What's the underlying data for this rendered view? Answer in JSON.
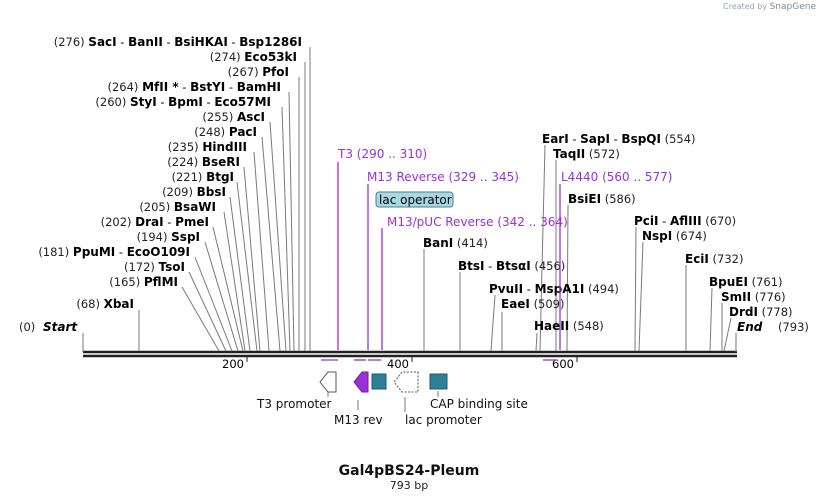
{
  "header": {
    "created_by": "Created by",
    "brand": "SnapGene"
  },
  "plasmid": {
    "name": "Gal4pBS24-Pleum",
    "length_label": "793 bp",
    "length_bp": 793
  },
  "ruler": {
    "ticks": [
      "200",
      "400",
      "600"
    ]
  },
  "start_label": {
    "pos": "(0)",
    "name": "Start"
  },
  "end_label": {
    "pos": "(793)",
    "name": "End"
  },
  "enzymes_left": [
    {
      "pos": "(276)",
      "names": [
        "SacI",
        "BanII",
        "BsiHKAI",
        "Bsp1286I"
      ]
    },
    {
      "pos": "(274)",
      "names": [
        "Eco53kI"
      ]
    },
    {
      "pos": "(267)",
      "names": [
        "PfoI"
      ]
    },
    {
      "pos": "(264)",
      "names": [
        "MfII *",
        "BstYI",
        "BamHI"
      ]
    },
    {
      "pos": "(260)",
      "names": [
        "StyI",
        "BpmI",
        "Eco57MI"
      ]
    },
    {
      "pos": "(255)",
      "names": [
        "AscI"
      ]
    },
    {
      "pos": "(248)",
      "names": [
        "PacI"
      ]
    },
    {
      "pos": "(235)",
      "names": [
        "HindIII"
      ]
    },
    {
      "pos": "(224)",
      "names": [
        "BseRI"
      ]
    },
    {
      "pos": "(221)",
      "names": [
        "BtgI"
      ]
    },
    {
      "pos": "(209)",
      "names": [
        "BbsI"
      ]
    },
    {
      "pos": "(205)",
      "names": [
        "BsaWI"
      ]
    },
    {
      "pos": "(202)",
      "names": [
        "DraI",
        "PmeI"
      ]
    },
    {
      "pos": "(194)",
      "names": [
        "SspI"
      ]
    },
    {
      "pos": "(181)",
      "names": [
        "PpuMI",
        "EcoO109I"
      ]
    },
    {
      "pos": "(172)",
      "names": [
        "TsoI"
      ]
    },
    {
      "pos": "(165)",
      "names": [
        "PflMI"
      ]
    },
    {
      "pos": "(68)",
      "names": [
        "XbaI"
      ]
    }
  ],
  "enzymes_right": [
    {
      "pos": "(554)",
      "names": [
        "EarI",
        "SapI",
        "BspQI"
      ]
    },
    {
      "pos": "(572)",
      "names": [
        "TaqII"
      ]
    },
    {
      "pos": "(586)",
      "names": [
        "BsiEI"
      ]
    },
    {
      "pos": "(414)",
      "names": [
        "BanI"
      ]
    },
    {
      "pos": "(456)",
      "names": [
        "BtsI",
        "BtsαI"
      ]
    },
    {
      "pos": "(494)",
      "names": [
        "PvuII",
        "MspA1I"
      ]
    },
    {
      "pos": "(509)",
      "names": [
        "EaeI"
      ]
    },
    {
      "pos": "(548)",
      "names": [
        "HaeII"
      ]
    },
    {
      "pos": "(670)",
      "names": [
        "PciI",
        "AflIII"
      ]
    },
    {
      "pos": "(674)",
      "names": [
        "NspI"
      ]
    },
    {
      "pos": "(732)",
      "names": [
        "EciI"
      ]
    },
    {
      "pos": "(761)",
      "names": [
        "BpuEI"
      ]
    },
    {
      "pos": "(776)",
      "names": [
        "SmII"
      ]
    },
    {
      "pos": "(778)",
      "names": [
        "DrdI"
      ]
    }
  ],
  "primers": [
    {
      "name": "T3",
      "range": "(290 .. 310)"
    },
    {
      "name": "M13 Reverse",
      "range": "(329 .. 345)"
    },
    {
      "name": "M13/pUC Reverse",
      "range": "(342 .. 364)"
    },
    {
      "name": "L4440",
      "range": "(560 .. 577)"
    }
  ],
  "features": {
    "lac_operator": "lac operator",
    "t3_promoter": "T3 promoter",
    "m13_rev": "M13 rev",
    "lac_promoter": "lac promoter",
    "cap_site": "CAP binding site"
  },
  "colors": {
    "primer": "#9b30d9",
    "feature_teal": "#2e7f99",
    "lac_op_fill": "#a8d7e6",
    "backbone": "#222222"
  }
}
